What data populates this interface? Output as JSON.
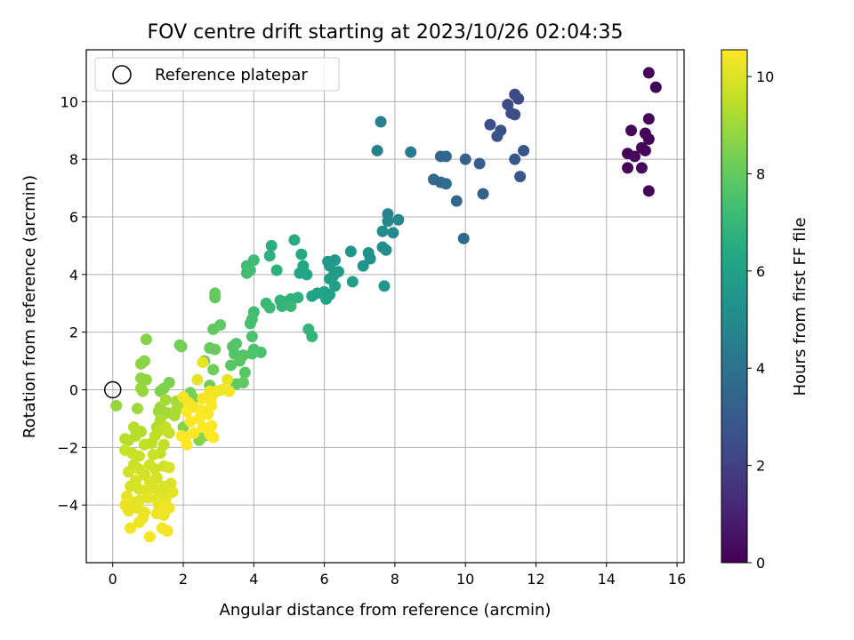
{
  "chart_data": {
    "type": "scatter",
    "title": "FOV centre drift starting at 2023/10/26 02:04:35",
    "xlabel": "Angular distance from reference (arcmin)",
    "ylabel": "Rotation from reference (arcmin)",
    "xlim": [
      -0.75,
      16.2
    ],
    "ylim": [
      -6.0,
      11.8
    ],
    "xticks": [
      "0",
      "2",
      "4",
      "6",
      "8",
      "10",
      "12",
      "14",
      "16"
    ],
    "yticks": [
      "−4",
      "−2",
      "0",
      "2",
      "4",
      "6",
      "8",
      "10"
    ],
    "grid": true,
    "legend": {
      "placement": "top-left",
      "entries": [
        "Reference platepar"
      ]
    },
    "reference_point": {
      "x": 0,
      "y": 0,
      "marker": "open-circle"
    },
    "colorbar": {
      "label": "Hours from first FF file",
      "range": [
        0,
        10.55
      ],
      "ticks": [
        "0",
        "2",
        "4",
        "6",
        "8",
        "10"
      ],
      "colormap": "viridis"
    },
    "points": [
      {
        "x": 15.2,
        "y": 11.0,
        "h": 0.1
      },
      {
        "x": 15.4,
        "y": 10.5,
        "h": 0.1
      },
      {
        "x": 15.2,
        "y": 9.4,
        "h": 0.1
      },
      {
        "x": 14.7,
        "y": 9.0,
        "h": 0.2
      },
      {
        "x": 15.1,
        "y": 8.9,
        "h": 0.1
      },
      {
        "x": 15.2,
        "y": 8.7,
        "h": 0.1
      },
      {
        "x": 15.0,
        "y": 8.4,
        "h": 0.2
      },
      {
        "x": 14.6,
        "y": 8.2,
        "h": 0.1
      },
      {
        "x": 14.8,
        "y": 8.1,
        "h": 0.2
      },
      {
        "x": 15.1,
        "y": 8.3,
        "h": 0.1
      },
      {
        "x": 14.6,
        "y": 7.7,
        "h": 0.1
      },
      {
        "x": 15.0,
        "y": 7.7,
        "h": 0.2
      },
      {
        "x": 15.2,
        "y": 6.9,
        "h": 0.1
      },
      {
        "x": 11.4,
        "y": 10.25,
        "h": 2.3
      },
      {
        "x": 11.5,
        "y": 10.1,
        "h": 2.4
      },
      {
        "x": 11.2,
        "y": 9.9,
        "h": 2.4
      },
      {
        "x": 11.3,
        "y": 9.6,
        "h": 2.5
      },
      {
        "x": 11.4,
        "y": 9.55,
        "h": 2.5
      },
      {
        "x": 10.7,
        "y": 9.2,
        "h": 2.6
      },
      {
        "x": 11.0,
        "y": 9.0,
        "h": 2.6
      },
      {
        "x": 10.9,
        "y": 8.8,
        "h": 2.7
      },
      {
        "x": 11.65,
        "y": 8.3,
        "h": 2.7
      },
      {
        "x": 11.4,
        "y": 8.0,
        "h": 2.8
      },
      {
        "x": 10.4,
        "y": 7.85,
        "h": 3.2
      },
      {
        "x": 10.0,
        "y": 8.0,
        "h": 3.3
      },
      {
        "x": 11.55,
        "y": 7.4,
        "h": 2.9
      },
      {
        "x": 9.3,
        "y": 8.1,
        "h": 3.5
      },
      {
        "x": 9.45,
        "y": 8.1,
        "h": 3.5
      },
      {
        "x": 9.1,
        "y": 7.3,
        "h": 3.6
      },
      {
        "x": 9.3,
        "y": 7.2,
        "h": 3.6
      },
      {
        "x": 9.45,
        "y": 7.15,
        "h": 3.7
      },
      {
        "x": 10.5,
        "y": 6.8,
        "h": 3.3
      },
      {
        "x": 9.75,
        "y": 6.55,
        "h": 3.5
      },
      {
        "x": 9.95,
        "y": 5.25,
        "h": 3.6
      },
      {
        "x": 8.45,
        "y": 8.25,
        "h": 4.3
      },
      {
        "x": 7.6,
        "y": 9.3,
        "h": 4.5
      },
      {
        "x": 7.5,
        "y": 8.3,
        "h": 4.6
      },
      {
        "x": 7.8,
        "y": 6.1,
        "h": 4.7
      },
      {
        "x": 7.8,
        "y": 5.85,
        "h": 4.8
      },
      {
        "x": 8.1,
        "y": 5.9,
        "h": 4.9
      },
      {
        "x": 7.65,
        "y": 5.5,
        "h": 5.0
      },
      {
        "x": 7.95,
        "y": 5.45,
        "h": 5.0
      },
      {
        "x": 7.65,
        "y": 4.95,
        "h": 5.2
      },
      {
        "x": 7.75,
        "y": 4.85,
        "h": 5.2
      },
      {
        "x": 7.25,
        "y": 4.75,
        "h": 5.3
      },
      {
        "x": 7.3,
        "y": 4.55,
        "h": 5.3
      },
      {
        "x": 7.1,
        "y": 4.3,
        "h": 5.4
      },
      {
        "x": 7.7,
        "y": 3.6,
        "h": 5.5
      },
      {
        "x": 6.75,
        "y": 4.8,
        "h": 5.5
      },
      {
        "x": 6.3,
        "y": 4.5,
        "h": 5.6
      },
      {
        "x": 6.1,
        "y": 4.45,
        "h": 5.6
      },
      {
        "x": 6.15,
        "y": 4.3,
        "h": 5.7
      },
      {
        "x": 6.4,
        "y": 4.1,
        "h": 5.7
      },
      {
        "x": 6.25,
        "y": 3.95,
        "h": 5.8
      },
      {
        "x": 6.15,
        "y": 3.85,
        "h": 5.8
      },
      {
        "x": 6.8,
        "y": 3.75,
        "h": 5.9
      },
      {
        "x": 6.3,
        "y": 3.6,
        "h": 5.9
      },
      {
        "x": 6.0,
        "y": 3.4,
        "h": 6.0
      },
      {
        "x": 6.15,
        "y": 3.3,
        "h": 6.0
      },
      {
        "x": 6.05,
        "y": 3.15,
        "h": 6.1
      },
      {
        "x": 5.8,
        "y": 3.35,
        "h": 6.1
      },
      {
        "x": 5.65,
        "y": 3.25,
        "h": 6.2
      },
      {
        "x": 5.4,
        "y": 4.1,
        "h": 6.2
      },
      {
        "x": 5.4,
        "y": 4.3,
        "h": 6.3
      },
      {
        "x": 5.5,
        "y": 4.0,
        "h": 6.3
      },
      {
        "x": 5.3,
        "y": 4.05,
        "h": 6.3
      },
      {
        "x": 5.35,
        "y": 4.7,
        "h": 6.4
      },
      {
        "x": 5.15,
        "y": 5.2,
        "h": 6.5
      },
      {
        "x": 4.5,
        "y": 5.0,
        "h": 6.6
      },
      {
        "x": 4.45,
        "y": 4.65,
        "h": 6.7
      },
      {
        "x": 4.65,
        "y": 4.15,
        "h": 6.7
      },
      {
        "x": 5.25,
        "y": 3.2,
        "h": 6.8
      },
      {
        "x": 5.05,
        "y": 3.15,
        "h": 6.8
      },
      {
        "x": 4.85,
        "y": 3.05,
        "h": 6.8
      },
      {
        "x": 4.75,
        "y": 3.1,
        "h": 6.9
      },
      {
        "x": 4.8,
        "y": 2.9,
        "h": 6.9
      },
      {
        "x": 5.05,
        "y": 2.9,
        "h": 7.0
      },
      {
        "x": 4.35,
        "y": 3.0,
        "h": 7.0
      },
      {
        "x": 4.45,
        "y": 2.85,
        "h": 7.1
      },
      {
        "x": 5.55,
        "y": 2.1,
        "h": 6.9
      },
      {
        "x": 5.65,
        "y": 1.85,
        "h": 6.9
      },
      {
        "x": 4.0,
        "y": 4.5,
        "h": 7.2
      },
      {
        "x": 3.8,
        "y": 4.3,
        "h": 7.2
      },
      {
        "x": 3.9,
        "y": 4.15,
        "h": 7.3
      },
      {
        "x": 3.8,
        "y": 4.05,
        "h": 7.3
      },
      {
        "x": 4.0,
        "y": 2.7,
        "h": 7.3
      },
      {
        "x": 3.95,
        "y": 2.45,
        "h": 7.4
      },
      {
        "x": 3.9,
        "y": 2.3,
        "h": 7.4
      },
      {
        "x": 3.95,
        "y": 1.85,
        "h": 7.5
      },
      {
        "x": 4.2,
        "y": 1.3,
        "h": 7.5
      },
      {
        "x": 4.0,
        "y": 1.4,
        "h": 7.5
      },
      {
        "x": 3.95,
        "y": 1.25,
        "h": 7.6
      },
      {
        "x": 3.5,
        "y": 1.6,
        "h": 7.6
      },
      {
        "x": 3.4,
        "y": 1.5,
        "h": 7.7
      },
      {
        "x": 3.45,
        "y": 1.25,
        "h": 7.7
      },
      {
        "x": 3.7,
        "y": 1.2,
        "h": 7.7
      },
      {
        "x": 3.6,
        "y": 1.0,
        "h": 7.8
      },
      {
        "x": 3.35,
        "y": 0.85,
        "h": 7.8
      },
      {
        "x": 3.75,
        "y": 0.6,
        "h": 7.8
      },
      {
        "x": 3.7,
        "y": 0.25,
        "h": 7.9
      },
      {
        "x": 3.5,
        "y": 0.2,
        "h": 7.9
      },
      {
        "x": 3.05,
        "y": 2.25,
        "h": 7.9
      },
      {
        "x": 2.85,
        "y": 2.1,
        "h": 8.0
      },
      {
        "x": 2.9,
        "y": 3.35,
        "h": 8.0
      },
      {
        "x": 2.9,
        "y": 3.2,
        "h": 8.0
      },
      {
        "x": 2.75,
        "y": 1.45,
        "h": 8.1
      },
      {
        "x": 2.9,
        "y": 1.4,
        "h": 8.1
      },
      {
        "x": 2.6,
        "y": 1.0,
        "h": 8.2
      },
      {
        "x": 2.85,
        "y": 0.7,
        "h": 8.2
      },
      {
        "x": 2.75,
        "y": 0.15,
        "h": 8.2
      },
      {
        "x": 1.9,
        "y": 1.55,
        "h": 8.3
      },
      {
        "x": 1.95,
        "y": 1.5,
        "h": 8.3
      },
      {
        "x": 2.2,
        "y": -0.1,
        "h": 8.3
      },
      {
        "x": 2.3,
        "y": -0.3,
        "h": 8.4
      },
      {
        "x": 1.6,
        "y": 0.25,
        "h": 8.4
      },
      {
        "x": 1.45,
        "y": 0.05,
        "h": 8.5
      },
      {
        "x": 1.35,
        "y": -0.05,
        "h": 8.5
      },
      {
        "x": 2.6,
        "y": -1.6,
        "h": 8.5
      },
      {
        "x": 2.45,
        "y": -1.75,
        "h": 8.6
      },
      {
        "x": 2.0,
        "y": -1.3,
        "h": 8.6
      },
      {
        "x": 0.95,
        "y": 1.75,
        "h": 8.6
      },
      {
        "x": 0.9,
        "y": 1.0,
        "h": 8.7
      },
      {
        "x": 0.8,
        "y": 0.9,
        "h": 8.7
      },
      {
        "x": 0.8,
        "y": 0.4,
        "h": 8.8
      },
      {
        "x": 0.95,
        "y": 0.35,
        "h": 8.8
      },
      {
        "x": 0.8,
        "y": 0.05,
        "h": 8.9
      },
      {
        "x": 0.85,
        "y": -0.05,
        "h": 8.9
      },
      {
        "x": 0.1,
        "y": -0.55,
        "h": 8.9
      },
      {
        "x": 0.7,
        "y": -0.65,
        "h": 9.0
      },
      {
        "x": 1.35,
        "y": -0.6,
        "h": 9.0
      },
      {
        "x": 1.3,
        "y": -0.75,
        "h": 9.0
      },
      {
        "x": 1.55,
        "y": -0.8,
        "h": 9.1
      },
      {
        "x": 1.5,
        "y": -0.35,
        "h": 9.1
      },
      {
        "x": 1.8,
        "y": -0.4,
        "h": 9.1
      },
      {
        "x": 1.95,
        "y": -0.6,
        "h": 9.2
      },
      {
        "x": 1.8,
        "y": -0.7,
        "h": 9.2
      },
      {
        "x": 1.75,
        "y": -0.9,
        "h": 9.2
      },
      {
        "x": 1.35,
        "y": -1.05,
        "h": 9.3
      },
      {
        "x": 1.25,
        "y": -1.3,
        "h": 9.3
      },
      {
        "x": 0.8,
        "y": -1.45,
        "h": 9.3
      },
      {
        "x": 0.6,
        "y": -1.3,
        "h": 9.4
      },
      {
        "x": 0.35,
        "y": -1.7,
        "h": 9.4
      },
      {
        "x": 0.45,
        "y": -1.75,
        "h": 9.4
      },
      {
        "x": 0.65,
        "y": -1.6,
        "h": 9.4
      },
      {
        "x": 0.9,
        "y": -1.9,
        "h": 9.5
      },
      {
        "x": 1.1,
        "y": -1.85,
        "h": 9.5
      },
      {
        "x": 1.2,
        "y": -1.6,
        "h": 9.5
      },
      {
        "x": 1.35,
        "y": -1.4,
        "h": 9.5
      },
      {
        "x": 1.5,
        "y": -1.3,
        "h": 9.6
      },
      {
        "x": 1.6,
        "y": -1.5,
        "h": 9.6
      },
      {
        "x": 1.45,
        "y": -1.9,
        "h": 9.6
      },
      {
        "x": 1.35,
        "y": -2.2,
        "h": 9.6
      },
      {
        "x": 1.15,
        "y": -2.25,
        "h": 9.7
      },
      {
        "x": 0.35,
        "y": -2.1,
        "h": 9.7
      },
      {
        "x": 0.55,
        "y": -2.2,
        "h": 9.7
      },
      {
        "x": 0.75,
        "y": -2.3,
        "h": 9.7
      },
      {
        "x": 0.6,
        "y": -2.6,
        "h": 9.7
      },
      {
        "x": 0.45,
        "y": -2.85,
        "h": 9.8
      },
      {
        "x": 0.75,
        "y": -2.75,
        "h": 9.8
      },
      {
        "x": 0.9,
        "y": -2.95,
        "h": 9.8
      },
      {
        "x": 1.05,
        "y": -2.6,
        "h": 9.8
      },
      {
        "x": 1.2,
        "y": -2.75,
        "h": 9.8
      },
      {
        "x": 1.45,
        "y": -2.65,
        "h": 9.8
      },
      {
        "x": 1.6,
        "y": -2.7,
        "h": 9.9
      },
      {
        "x": 1.25,
        "y": -3.05,
        "h": 9.9
      },
      {
        "x": 1.05,
        "y": -3.2,
        "h": 9.9
      },
      {
        "x": 0.65,
        "y": -3.15,
        "h": 9.9
      },
      {
        "x": 0.5,
        "y": -3.35,
        "h": 9.9
      },
      {
        "x": 0.75,
        "y": -3.45,
        "h": 9.9
      },
      {
        "x": 0.95,
        "y": -3.5,
        "h": 10.0
      },
      {
        "x": 1.15,
        "y": -3.4,
        "h": 10.0
      },
      {
        "x": 1.3,
        "y": -3.55,
        "h": 10.0
      },
      {
        "x": 1.45,
        "y": -3.35,
        "h": 10.0
      },
      {
        "x": 1.65,
        "y": -3.25,
        "h": 10.0
      },
      {
        "x": 1.6,
        "y": -3.55,
        "h": 10.0
      },
      {
        "x": 1.7,
        "y": -3.55,
        "h": 10.1
      },
      {
        "x": 1.5,
        "y": -3.8,
        "h": 10.1
      },
      {
        "x": 1.25,
        "y": -3.8,
        "h": 10.1
      },
      {
        "x": 1.0,
        "y": -3.75,
        "h": 10.1
      },
      {
        "x": 0.75,
        "y": -3.85,
        "h": 10.1
      },
      {
        "x": 0.55,
        "y": -3.9,
        "h": 10.1
      },
      {
        "x": 0.4,
        "y": -3.7,
        "h": 10.2
      },
      {
        "x": 0.35,
        "y": -4.0,
        "h": 10.2
      },
      {
        "x": 0.45,
        "y": -4.2,
        "h": 10.2
      },
      {
        "x": 0.7,
        "y": -4.1,
        "h": 10.2
      },
      {
        "x": 0.9,
        "y": -4.25,
        "h": 10.2
      },
      {
        "x": 1.3,
        "y": -4.0,
        "h": 10.2
      },
      {
        "x": 1.5,
        "y": -4.05,
        "h": 10.3
      },
      {
        "x": 1.6,
        "y": -4.1,
        "h": 10.3
      },
      {
        "x": 1.25,
        "y": -4.3,
        "h": 10.3
      },
      {
        "x": 1.45,
        "y": -4.35,
        "h": 10.3
      },
      {
        "x": 0.85,
        "y": -4.45,
        "h": 10.3
      },
      {
        "x": 0.75,
        "y": -4.6,
        "h": 10.3
      },
      {
        "x": 0.5,
        "y": -4.8,
        "h": 10.3
      },
      {
        "x": 1.4,
        "y": -4.8,
        "h": 10.4
      },
      {
        "x": 1.55,
        "y": -4.9,
        "h": 10.4
      },
      {
        "x": 1.05,
        "y": -5.1,
        "h": 10.4
      },
      {
        "x": 2.4,
        "y": 0.35,
        "h": 10.1
      },
      {
        "x": 2.55,
        "y": 0.95,
        "h": 10.2
      },
      {
        "x": 3.25,
        "y": 0.35,
        "h": 10.2
      },
      {
        "x": 2.75,
        "y": -0.05,
        "h": 10.3
      },
      {
        "x": 2.95,
        "y": -0.05,
        "h": 10.3
      },
      {
        "x": 3.1,
        "y": 0.0,
        "h": 10.3
      },
      {
        "x": 3.3,
        "y": -0.05,
        "h": 10.4
      },
      {
        "x": 2.55,
        "y": -0.3,
        "h": 10.4
      },
      {
        "x": 2.8,
        "y": -0.3,
        "h": 10.4
      },
      {
        "x": 2.0,
        "y": -0.25,
        "h": 10.4
      },
      {
        "x": 2.15,
        "y": -0.45,
        "h": 10.4
      },
      {
        "x": 2.3,
        "y": -0.6,
        "h": 10.4
      },
      {
        "x": 2.1,
        "y": -0.75,
        "h": 10.5
      },
      {
        "x": 2.5,
        "y": -0.7,
        "h": 10.5
      },
      {
        "x": 2.8,
        "y": -0.55,
        "h": 10.5
      },
      {
        "x": 2.7,
        "y": -0.85,
        "h": 10.5
      },
      {
        "x": 2.45,
        "y": -1.0,
        "h": 10.5
      },
      {
        "x": 2.2,
        "y": -1.1,
        "h": 10.5
      },
      {
        "x": 2.55,
        "y": -1.3,
        "h": 10.5
      },
      {
        "x": 2.8,
        "y": -1.25,
        "h": 10.55
      },
      {
        "x": 2.3,
        "y": -1.5,
        "h": 10.55
      },
      {
        "x": 2.75,
        "y": -1.55,
        "h": 10.55
      },
      {
        "x": 2.85,
        "y": -1.65,
        "h": 10.55
      },
      {
        "x": 2.05,
        "y": -1.65,
        "h": 10.55
      },
      {
        "x": 1.95,
        "y": -1.6,
        "h": 10.55
      },
      {
        "x": 2.1,
        "y": -1.9,
        "h": 10.55
      }
    ]
  }
}
